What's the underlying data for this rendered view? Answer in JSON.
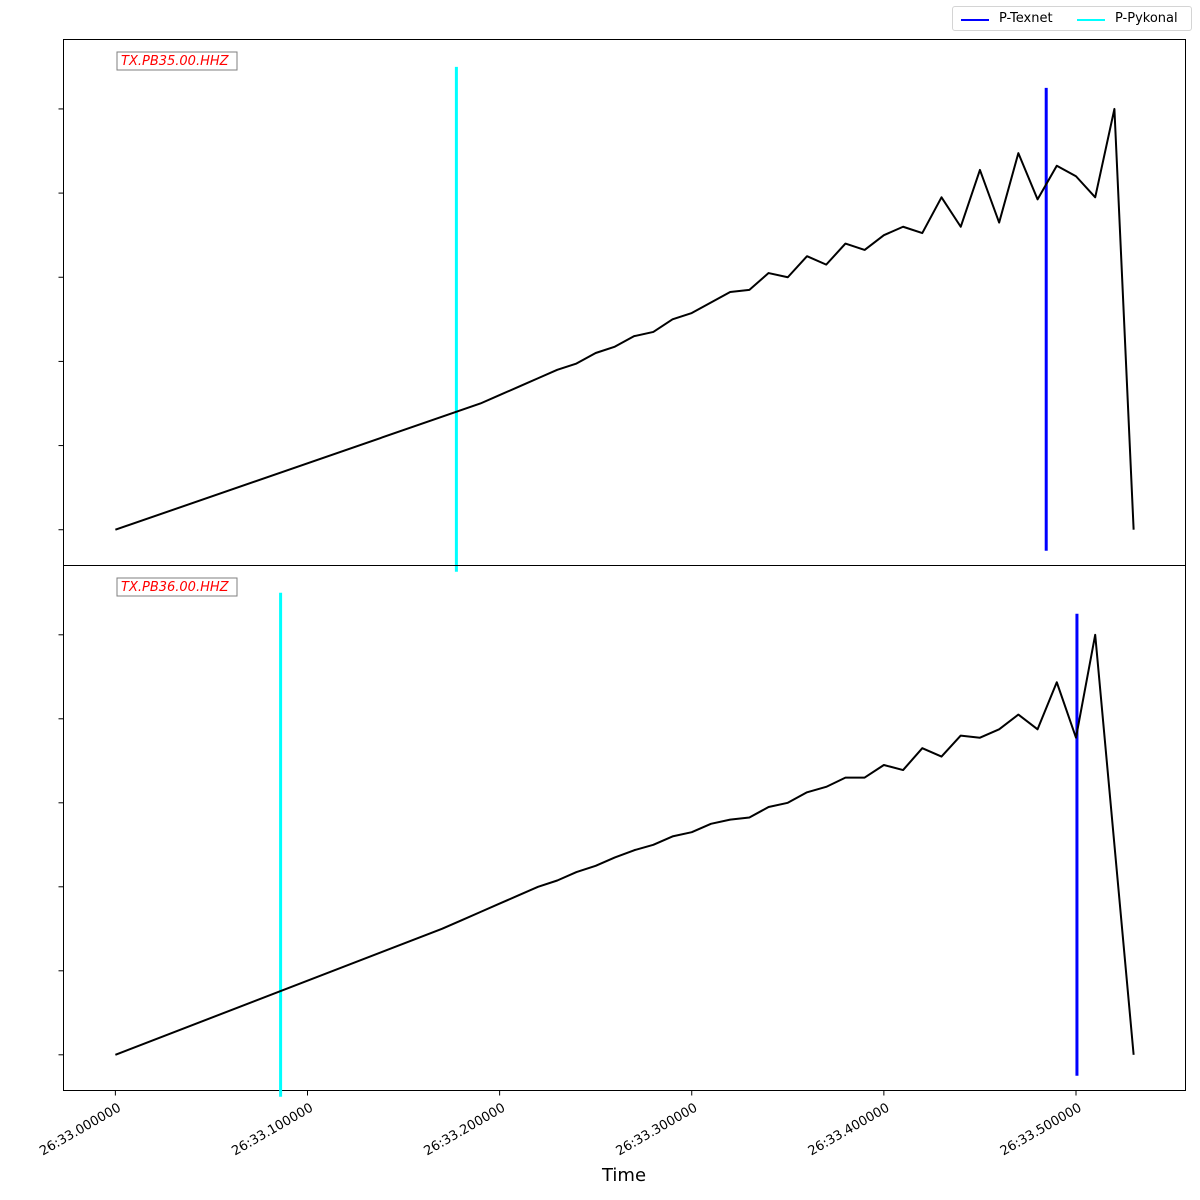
{
  "legend": {
    "placement": "top-right, outside axes",
    "items": [
      {
        "label": "P-Texnet",
        "color": "#0000ff"
      },
      {
        "label": "P-Pykonal",
        "color": "#00ffff"
      }
    ]
  },
  "chart_data": {
    "type": "line",
    "xlabel": "Time",
    "x_tick_labels": [
      "26:33.000000",
      "26:33.100000",
      "26:33.200000",
      "26:33.300000",
      "26:33.400000",
      "26:33.500000"
    ],
    "x_ticks": [
      0.0,
      0.1,
      0.2,
      0.3,
      0.4,
      0.5
    ],
    "xlim": [
      -0.027,
      0.557
    ],
    "y_tick_labels_visible": false,
    "grid": false,
    "trace_color": "#000000",
    "panels": [
      {
        "station_label": "TX.PB35.00.HHZ",
        "ylim": [
          -0.085,
          1.165
        ],
        "series": [
          {
            "values": [
              [
                0.0,
                0.0
              ],
              [
                0.19,
                0.3
              ],
              [
                0.2,
                0.32
              ],
              [
                0.21,
                0.34
              ],
              [
                0.22,
                0.36
              ],
              [
                0.23,
                0.38
              ],
              [
                0.24,
                0.395
              ],
              [
                0.25,
                0.42
              ],
              [
                0.26,
                0.435
              ],
              [
                0.27,
                0.46
              ],
              [
                0.28,
                0.47
              ],
              [
                0.29,
                0.5
              ],
              [
                0.3,
                0.515
              ],
              [
                0.31,
                0.54
              ],
              [
                0.32,
                0.565
              ],
              [
                0.33,
                0.57
              ],
              [
                0.34,
                0.61
              ],
              [
                0.35,
                0.6
              ],
              [
                0.36,
                0.65
              ],
              [
                0.37,
                0.63
              ],
              [
                0.38,
                0.68
              ],
              [
                0.39,
                0.665
              ],
              [
                0.4,
                0.7
              ],
              [
                0.41,
                0.72
              ],
              [
                0.42,
                0.705
              ],
              [
                0.43,
                0.79
              ],
              [
                0.44,
                0.72
              ],
              [
                0.45,
                0.855
              ],
              [
                0.46,
                0.73
              ],
              [
                0.47,
                0.895
              ],
              [
                0.48,
                0.785
              ],
              [
                0.49,
                0.865
              ],
              [
                0.5,
                0.84
              ],
              [
                0.51,
                0.79
              ],
              [
                0.52,
                1.0
              ],
              [
                0.53,
                0.0
              ]
            ]
          }
        ],
        "picks": [
          {
            "name": "P-Pykonal",
            "x": 0.1775,
            "ymin": -0.1,
            "ymax": 1.1
          },
          {
            "name": "P-Texnet",
            "x": 0.4845,
            "ymin": -0.05,
            "ymax": 1.05
          }
        ]
      },
      {
        "station_label": "TX.PB36.00.HHZ",
        "ylim": [
          -0.085,
          1.165
        ],
        "series": [
          {
            "values": [
              [
                0.0,
                0.0
              ],
              [
                0.17,
                0.3
              ],
              [
                0.18,
                0.32
              ],
              [
                0.19,
                0.34
              ],
              [
                0.2,
                0.36
              ],
              [
                0.21,
                0.38
              ],
              [
                0.22,
                0.4
              ],
              [
                0.23,
                0.415
              ],
              [
                0.24,
                0.435
              ],
              [
                0.25,
                0.45
              ],
              [
                0.26,
                0.47
              ],
              [
                0.27,
                0.487
              ],
              [
                0.28,
                0.5
              ],
              [
                0.29,
                0.52
              ],
              [
                0.3,
                0.53
              ],
              [
                0.31,
                0.55
              ],
              [
                0.32,
                0.56
              ],
              [
                0.33,
                0.565
              ],
              [
                0.34,
                0.59
              ],
              [
                0.35,
                0.6
              ],
              [
                0.36,
                0.625
              ],
              [
                0.37,
                0.638
              ],
              [
                0.38,
                0.66
              ],
              [
                0.39,
                0.66
              ],
              [
                0.4,
                0.69
              ],
              [
                0.41,
                0.678
              ],
              [
                0.42,
                0.73
              ],
              [
                0.43,
                0.71
              ],
              [
                0.44,
                0.76
              ],
              [
                0.45,
                0.755
              ],
              [
                0.46,
                0.775
              ],
              [
                0.47,
                0.81
              ],
              [
                0.48,
                0.775
              ],
              [
                0.49,
                0.887
              ],
              [
                0.5,
                0.755
              ],
              [
                0.51,
                1.0
              ],
              [
                0.53,
                0.0
              ]
            ]
          }
        ],
        "picks": [
          {
            "name": "P-Pykonal",
            "x": 0.086,
            "ymin": -0.1,
            "ymax": 1.1
          },
          {
            "name": "P-Texnet",
            "x": 0.5005,
            "ymin": -0.05,
            "ymax": 1.05
          }
        ]
      }
    ]
  }
}
